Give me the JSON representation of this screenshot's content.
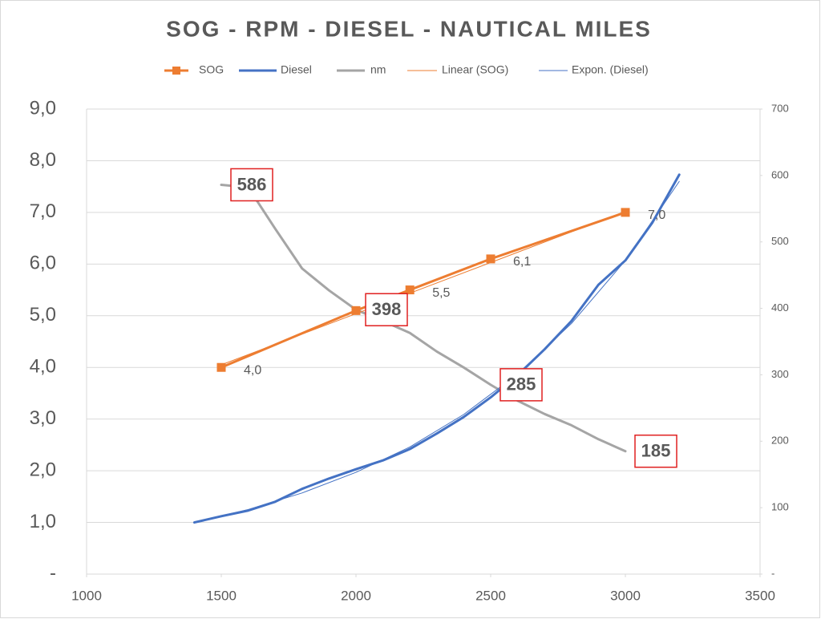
{
  "chart_data": {
    "type": "line",
    "title": "SOG - RPM - DIESEL - NAUTICAL MILES",
    "xlim": [
      1000,
      3500
    ],
    "xticks": [
      1000,
      1500,
      2000,
      2500,
      3000,
      3500
    ],
    "ylim": [
      0,
      9
    ],
    "yticks": [
      {
        "value": 0,
        "label": "-"
      },
      {
        "value": 1,
        "label": "1,0"
      },
      {
        "value": 2,
        "label": "2,0"
      },
      {
        "value": 3,
        "label": "3,0"
      },
      {
        "value": 4,
        "label": "4,0"
      },
      {
        "value": 5,
        "label": "5,0"
      },
      {
        "value": 6,
        "label": "6,0"
      },
      {
        "value": 7,
        "label": "7,0"
      },
      {
        "value": 8,
        "label": "8,0"
      },
      {
        "value": 9,
        "label": "9,0"
      }
    ],
    "y2lim": [
      0,
      700
    ],
    "y2ticks": [
      {
        "value": 0,
        "label": "-"
      },
      100,
      200,
      300,
      400,
      500,
      600,
      700
    ],
    "grid": true,
    "legend": "top",
    "series": [
      {
        "name": "SOG",
        "color": "#ed7d31",
        "line_width": 3,
        "marker": "square",
        "x": [
          1500,
          2000,
          2200,
          2500,
          3000
        ],
        "values": [
          4.0,
          5.1,
          5.5,
          6.1,
          7.0
        ],
        "value_labels": [
          "4,0",
          null,
          "5,5",
          "6,1",
          "7,0"
        ]
      },
      {
        "name": "Diesel",
        "color": "#4472c4",
        "line_width": 3,
        "x": [
          1400,
          1500,
          1600,
          1700,
          1800,
          1900,
          2000,
          2100,
          2200,
          2300,
          2400,
          2500,
          2600,
          2700,
          2800,
          2900,
          3000,
          3100,
          3200
        ],
        "values": [
          1.0,
          1.12,
          1.23,
          1.4,
          1.65,
          1.85,
          2.03,
          2.2,
          2.42,
          2.72,
          3.04,
          3.42,
          3.85,
          4.35,
          4.9,
          5.6,
          6.07,
          6.8,
          7.73
        ]
      },
      {
        "name": "nm",
        "color": "#a5a5a5",
        "line_width": 3,
        "axis": "y2",
        "x": [
          1500,
          1600,
          1700,
          1800,
          1900,
          2000,
          2100,
          2200,
          2300,
          2400,
          2500,
          2600,
          2700,
          2800,
          2900,
          3000
        ],
        "values": [
          586,
          582,
          520,
          460,
          427,
          398,
          381,
          363,
          335,
          311,
          285,
          261,
          241,
          224,
          203,
          185
        ],
        "value_labels": [
          "586",
          null,
          null,
          null,
          null,
          "398",
          null,
          null,
          null,
          null,
          "285",
          null,
          null,
          null,
          null,
          "185"
        ]
      },
      {
        "name": "Linear (SOG)",
        "color": "#ed7d31",
        "line_width": 1,
        "x": [
          1500,
          3000
        ],
        "values": [
          4.05,
          7.02
        ]
      },
      {
        "name": "Expon. (Diesel)",
        "color": "#4472c4",
        "line_width": 1,
        "x": [
          1400,
          1600,
          1800,
          2000,
          2200,
          2400,
          2600,
          2800,
          3000,
          3200
        ],
        "values": [
          1.0,
          1.25,
          1.57,
          1.97,
          2.46,
          3.09,
          3.87,
          4.85,
          6.07,
          7.6
        ]
      }
    ]
  }
}
